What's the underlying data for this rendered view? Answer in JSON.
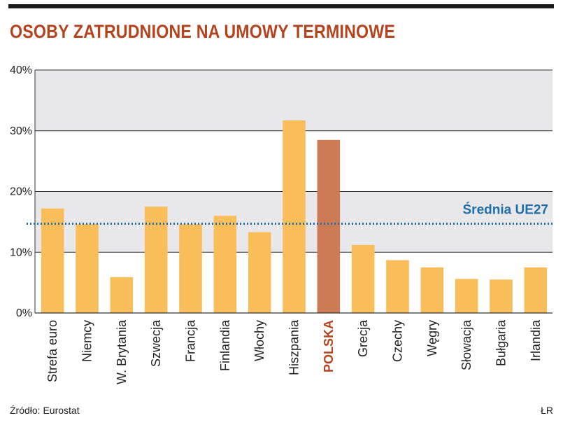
{
  "header": {
    "title": "OSOBY ZATRUDNIONE NA UMOWY TERMINOWE"
  },
  "footer": {
    "source": "Źródło: Eurostat",
    "credit": "ŁR"
  },
  "colors": {
    "bar": "#f9bd5a",
    "highlight_bar": "#cd7b54",
    "average_line": "#1f6faa",
    "title": "#b5431d",
    "band": "#e8e8ea"
  },
  "chart_data": {
    "type": "bar",
    "title": "OSOBY ZATRUDNIONE NA UMOWY TERMINOWE",
    "xlabel": "",
    "ylabel": "",
    "ylim": [
      0,
      40
    ],
    "yticks": [
      "0%",
      "10%",
      "20%",
      "30%",
      "40%"
    ],
    "categories": [
      "Strefa euro",
      "Niemcy",
      "W. Brytania",
      "Szwecja",
      "Francja",
      "Finlandia",
      "Włochy",
      "Hiszpania",
      "POLSKA",
      "Grecja",
      "Czechy",
      "Węgry",
      "Słowacja",
      "Bułgaria",
      "Irlandia"
    ],
    "values": [
      17.2,
      14.6,
      5.9,
      17.5,
      14.6,
      16.0,
      13.3,
      31.7,
      28.5,
      11.2,
      8.7,
      7.5,
      5.6,
      5.5,
      7.5
    ],
    "highlight": "POLSKA",
    "reference_line": {
      "label": "Średnia UE27",
      "value": 14.7
    },
    "grid": true
  }
}
